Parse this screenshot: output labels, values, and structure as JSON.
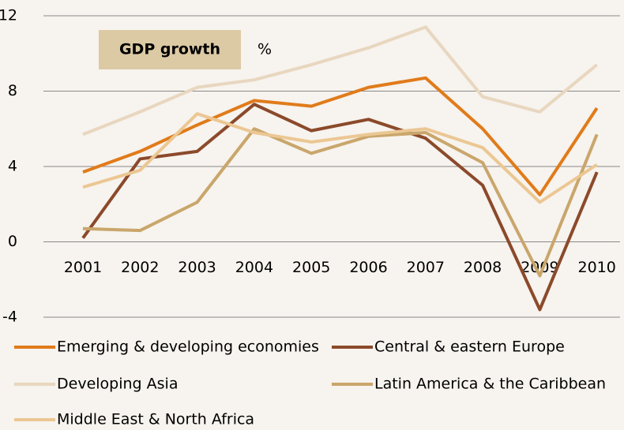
{
  "chart_data": {
    "type": "line",
    "title": "GDP growth",
    "y_unit_label": "%",
    "categories": [
      "2001",
      "2002",
      "2003",
      "2004",
      "2005",
      "2006",
      "2007",
      "2008",
      "2009",
      "2010"
    ],
    "series": [
      {
        "name": "Emerging & developing economies",
        "color": "#e07b1a",
        "values": [
          3.7,
          4.8,
          6.2,
          7.5,
          7.2,
          8.2,
          8.7,
          6.0,
          2.5,
          7.1
        ]
      },
      {
        "name": "Central & eastern Europe",
        "color": "#8b4a2b",
        "values": [
          0.2,
          4.4,
          4.8,
          7.3,
          5.9,
          6.5,
          5.5,
          3.0,
          -3.6,
          3.7
        ]
      },
      {
        "name": "Developing Asia",
        "color": "#e8d7bf",
        "values": [
          5.7,
          6.9,
          8.2,
          8.6,
          9.4,
          10.3,
          11.4,
          7.7,
          6.9,
          9.4
        ]
      },
      {
        "name": "Latin America & the Caribbean",
        "color": "#c9a66b",
        "values": [
          0.7,
          0.6,
          2.1,
          6.0,
          4.7,
          5.6,
          5.8,
          4.2,
          -1.8,
          5.7
        ]
      },
      {
        "name": "Middle East & North Africa",
        "color": "#ebc793",
        "values": [
          2.9,
          3.8,
          6.8,
          5.8,
          5.3,
          5.7,
          6.0,
          5.0,
          2.1,
          4.1
        ]
      }
    ],
    "ylim": [
      -4,
      12
    ],
    "yticks": [
      -4,
      0,
      4,
      8,
      12
    ],
    "grid": true,
    "legend": "bottom"
  }
}
